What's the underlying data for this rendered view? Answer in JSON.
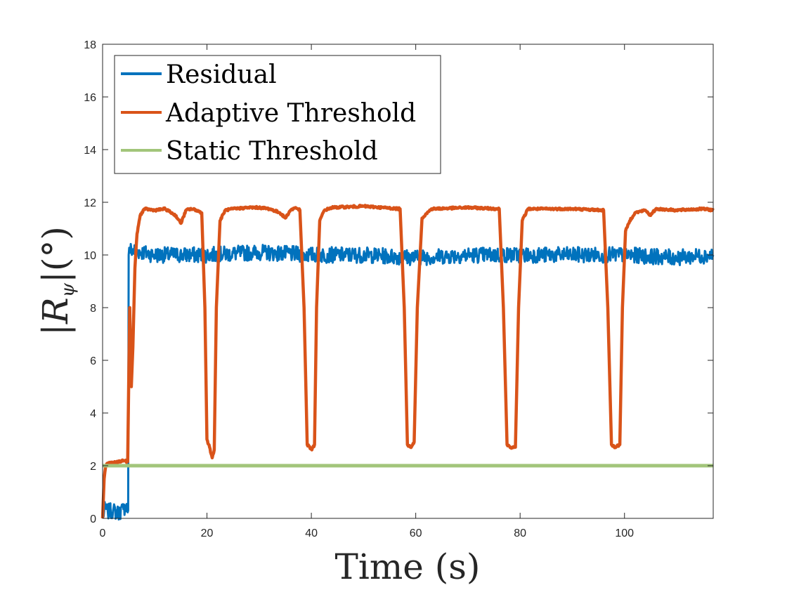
{
  "chart_data": {
    "type": "line",
    "title": "",
    "xlabel": "Time (s)",
    "ylabel_parts": {
      "open": "|",
      "symbol": "R",
      "subscript": "ψ",
      "close": "|",
      "unit": "(°)"
    },
    "xlim": [
      0,
      117
    ],
    "ylim": [
      0,
      18
    ],
    "xticks": [
      0,
      20,
      40,
      60,
      80,
      100
    ],
    "yticks": [
      0,
      2,
      4,
      6,
      8,
      10,
      12,
      14,
      16,
      18
    ],
    "grid": false,
    "legend_position": "top-left",
    "series": [
      {
        "name": "Residual",
        "color": "#0072BD",
        "x": [
          0,
          0.5,
          1,
          2,
          3,
          4,
          4.5,
          4.9,
          5.0,
          5.2,
          10,
          20,
          30,
          40,
          50,
          60,
          70,
          80,
          90,
          100,
          110,
          117
        ],
        "y": [
          0.05,
          0.4,
          0.25,
          0.3,
          0.2,
          0.35,
          0.5,
          0.3,
          10.0,
          10.2,
          10.0,
          10.0,
          10.1,
          10.0,
          10.0,
          9.9,
          10.0,
          10.0,
          10.0,
          10.0,
          9.9,
          10.0
        ],
        "noise_amplitude": 0.3
      },
      {
        "name": "Adaptive Threshold",
        "color": "#D95319",
        "x": [
          0,
          0.3,
          0.6,
          1,
          2,
          3,
          4,
          4.8,
          5.0,
          5.2,
          5.5,
          5.8,
          6.2,
          6.6,
          7.2,
          8,
          10,
          12,
          14,
          15,
          16,
          17,
          18,
          19,
          19.6,
          20.0,
          20.5,
          21.0,
          21.4,
          21.8,
          22.5,
          23.5,
          25,
          28,
          30,
          32,
          34,
          35,
          36,
          37,
          37.8,
          38.6,
          39.2,
          40.1,
          40.6,
          41.0,
          41.6,
          42.5,
          44,
          50,
          57,
          57.8,
          58.4,
          59.0,
          59.7,
          60.3,
          61.2,
          63,
          70,
          76,
          76.8,
          77.5,
          78.2,
          79.1,
          79.7,
          80.4,
          81.5,
          83,
          90,
          96,
          96.8,
          97.5,
          98.2,
          99.1,
          99.6,
          100.2,
          101,
          102,
          104,
          105,
          106,
          110,
          115,
          117
        ],
        "y": [
          0.0,
          1.5,
          2.0,
          2.1,
          2.1,
          2.15,
          2.2,
          2.15,
          5.0,
          8.0,
          5.0,
          6.5,
          9.5,
          10.8,
          11.5,
          11.75,
          11.7,
          11.75,
          11.5,
          11.2,
          11.7,
          11.75,
          11.7,
          11.6,
          8.0,
          3.0,
          2.7,
          2.3,
          2.6,
          8.0,
          11.3,
          11.7,
          11.75,
          11.8,
          11.8,
          11.75,
          11.6,
          11.4,
          11.7,
          11.8,
          11.7,
          8.0,
          2.8,
          2.6,
          2.8,
          8.0,
          11.3,
          11.7,
          11.8,
          11.85,
          11.75,
          8.0,
          2.8,
          2.7,
          2.9,
          8.0,
          11.4,
          11.75,
          11.8,
          11.75,
          8.0,
          2.8,
          2.7,
          2.7,
          8.0,
          11.3,
          11.75,
          11.75,
          11.75,
          11.7,
          8.0,
          2.8,
          2.7,
          2.8,
          8.0,
          10.9,
          11.3,
          11.6,
          11.7,
          11.5,
          11.75,
          11.7,
          11.75,
          11.7
        ],
        "noise_amplitude": 0.04
      },
      {
        "name": "Static Threshold",
        "color": "#A2C57A",
        "x": [
          0,
          117
        ],
        "y": [
          2,
          2
        ],
        "noise_amplitude": 0
      }
    ]
  }
}
